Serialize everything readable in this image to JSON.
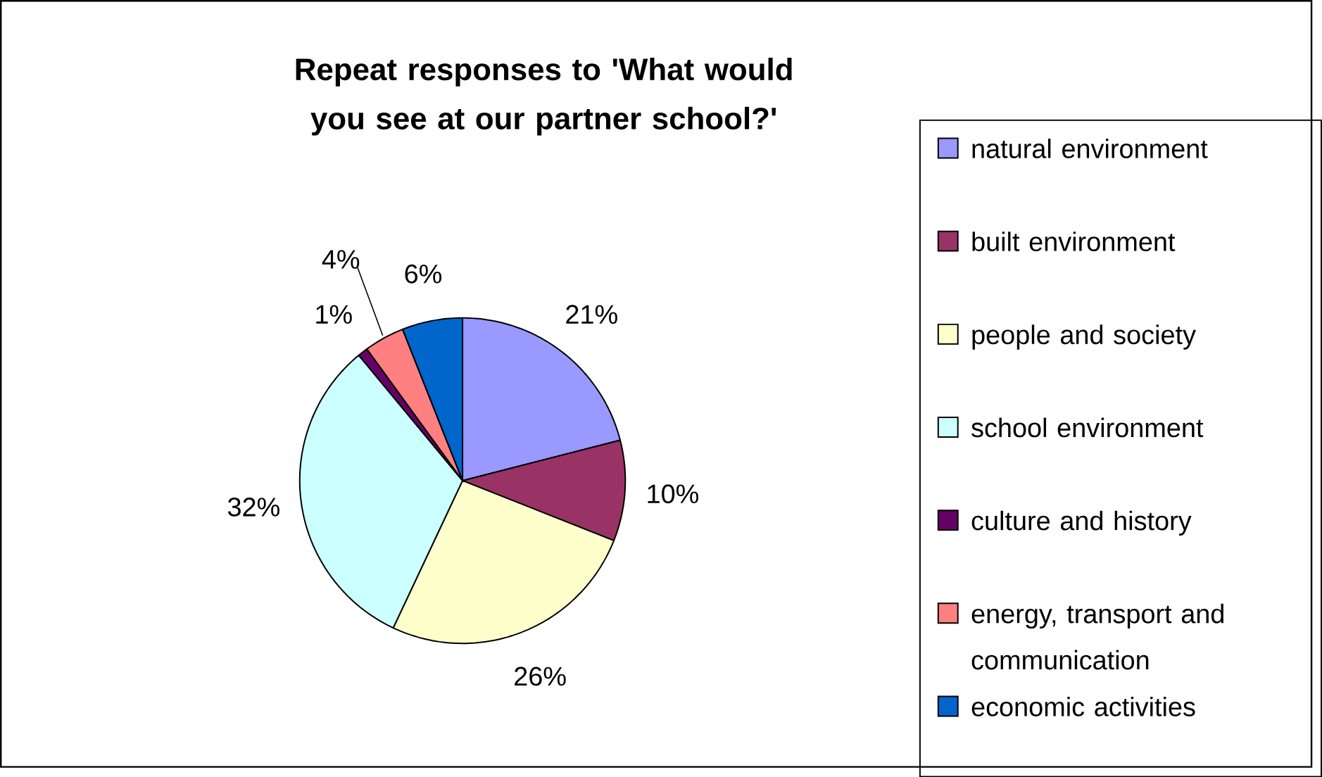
{
  "chart_data": {
    "type": "pie",
    "title": "Repeat responses to 'What would you see at our partner school?'",
    "categories": [
      "natural environment",
      "built environment",
      "people and society",
      "school environment",
      "culture and history",
      "energy, transport and communication",
      "economic activities"
    ],
    "values": [
      21,
      10,
      26,
      32,
      1,
      4,
      6
    ],
    "value_labels": [
      "21%",
      "10%",
      "26%",
      "32%",
      "1%",
      "4%",
      "6%"
    ],
    "colors": [
      "#9999ff",
      "#993366",
      "#ffffcc",
      "#ccffff",
      "#660066",
      "#ff8080",
      "#0066cc"
    ],
    "legend": "right"
  }
}
